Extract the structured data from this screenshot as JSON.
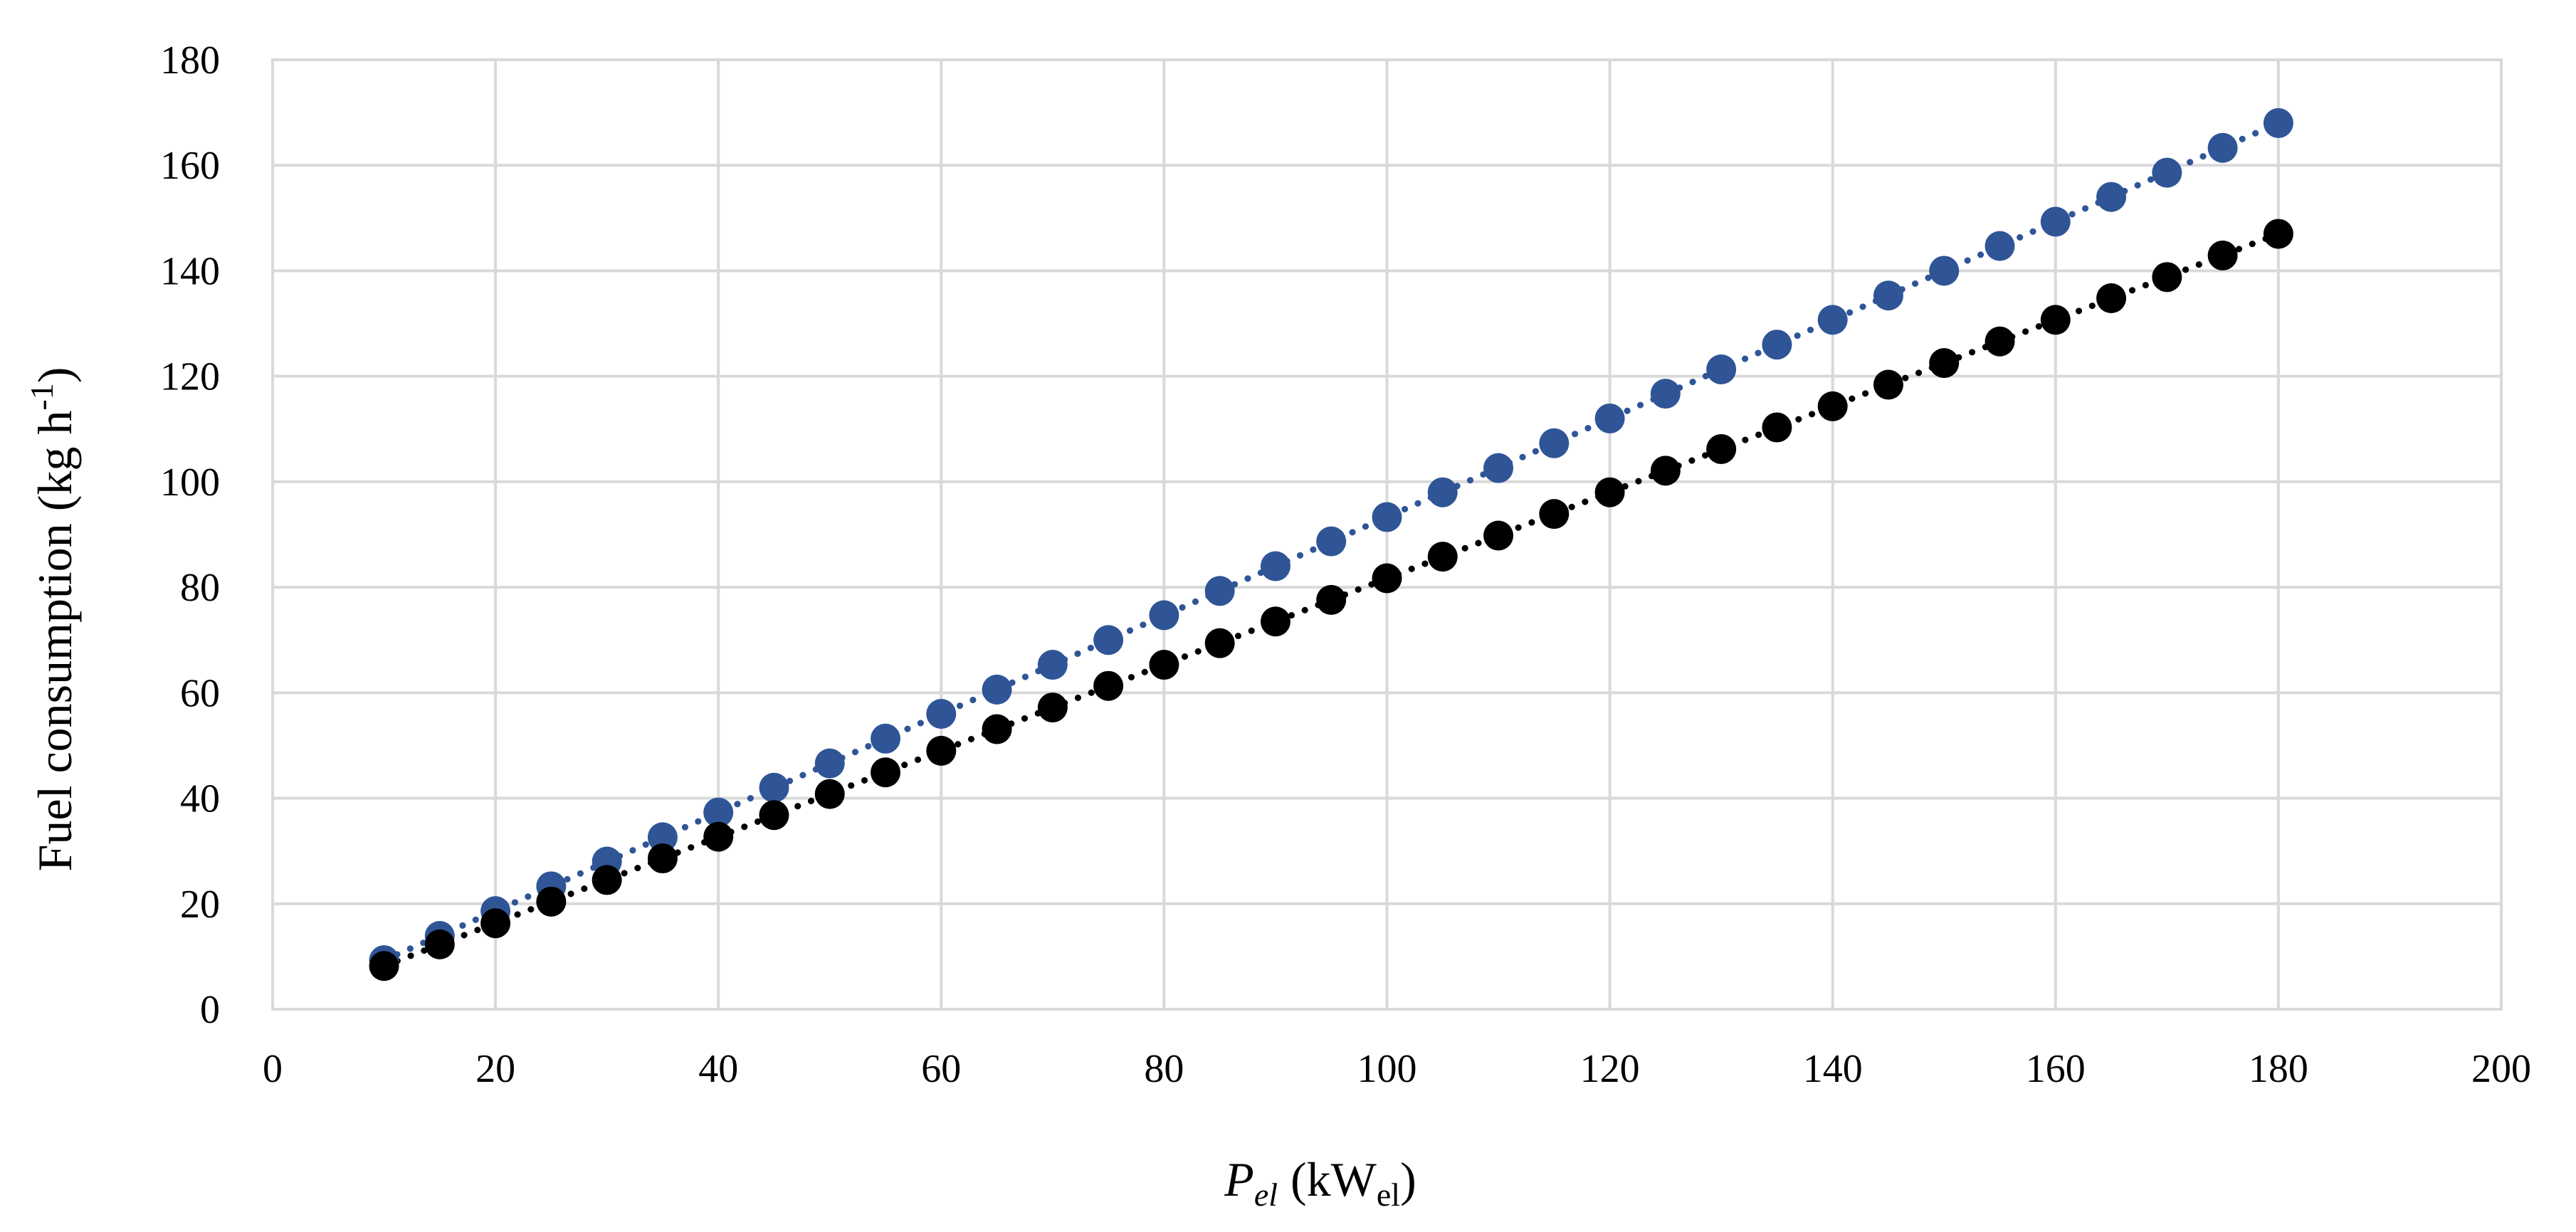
{
  "chart_data": {
    "type": "scatter",
    "title": "",
    "xlabel": {
      "symbol": "P",
      "symbol_sub": "el",
      "unit_open": "(kW",
      "unit_sub": "el",
      "unit_close": ")"
    },
    "ylabel": {
      "text": "Fuel consumption (kg h",
      "sup": "-1",
      "close": ")"
    },
    "xlim": [
      0,
      200
    ],
    "ylim": [
      0,
      180
    ],
    "xticks": [
      0,
      20,
      40,
      60,
      80,
      100,
      120,
      140,
      160,
      180,
      200
    ],
    "yticks": [
      0,
      20,
      40,
      60,
      80,
      100,
      120,
      140,
      160,
      180
    ],
    "grid": true,
    "legend": "none",
    "series": [
      {
        "name": "series-blue",
        "color": "#2F5597",
        "trendline": "dotted-linear",
        "x": [
          10,
          15,
          20,
          25,
          30,
          35,
          40,
          45,
          50,
          55,
          60,
          65,
          70,
          75,
          80,
          85,
          90,
          95,
          100,
          105,
          110,
          115,
          120,
          125,
          130,
          135,
          140,
          145,
          150,
          155,
          160,
          165,
          170,
          175,
          180
        ],
        "y": [
          9.3,
          13.9,
          18.6,
          23.3,
          28.0,
          32.6,
          37.3,
          42.0,
          46.6,
          51.3,
          56.0,
          60.6,
          65.3,
          70.0,
          74.7,
          79.3,
          84.0,
          88.7,
          93.3,
          98.0,
          102.6,
          107.3,
          112.0,
          116.7,
          121.3,
          126.0,
          130.7,
          135.3,
          140.0,
          144.7,
          149.3,
          154.0,
          158.6,
          163.3,
          168.0
        ]
      },
      {
        "name": "series-black",
        "color": "#000000",
        "trendline": "dotted-linear",
        "x": [
          10,
          15,
          20,
          25,
          30,
          35,
          40,
          45,
          50,
          55,
          60,
          65,
          70,
          75,
          80,
          85,
          90,
          95,
          100,
          105,
          110,
          115,
          120,
          125,
          130,
          135,
          140,
          145,
          150,
          155,
          160,
          165,
          170,
          175,
          180
        ],
        "y": [
          8.2,
          12.3,
          16.3,
          20.4,
          24.5,
          28.6,
          32.7,
          36.8,
          40.8,
          44.9,
          49.0,
          53.1,
          57.2,
          61.3,
          65.3,
          69.4,
          73.5,
          77.6,
          81.7,
          85.8,
          89.8,
          93.9,
          98.0,
          102.1,
          106.2,
          110.3,
          114.3,
          118.4,
          122.5,
          126.6,
          130.7,
          134.8,
          138.8,
          142.9,
          147.0
        ]
      }
    ]
  }
}
